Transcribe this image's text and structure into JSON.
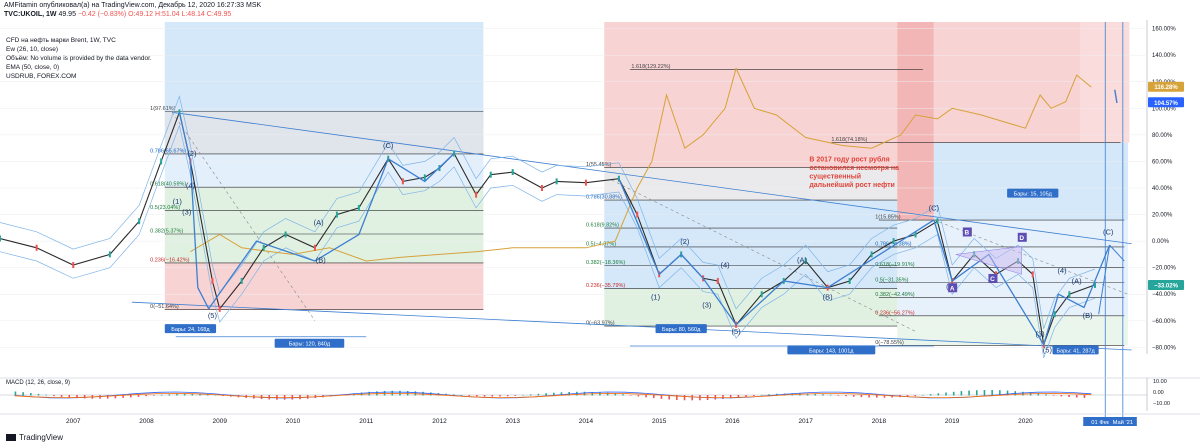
{
  "header": {
    "publisher_line": "AMFitamin опубликовал(а) на TradingView.com, Декабрь 12, 2020 16:27:33 MSK",
    "symbol": "TVC:UKOIL, 1W",
    "last": "49.95",
    "change": "−0.42 (−0.83%)",
    "ohlc": "O:49.12  H:51.04  L:48.14  C:49.95"
  },
  "legend": {
    "title": "CFD на нефть марки Brent, 1W, TVC",
    "ew": "Ew (26, 10, close)",
    "volume": "Объём: No volume is provided by the data vendor.",
    "ema": "EMA (50, close, 0)",
    "usdrub": "USDRUB, FOREX.COM"
  },
  "colors": {
    "red_zone": "#f6c4c4",
    "blue_zone": "#c7e0f7",
    "grey_zone": "#e3e3e6",
    "green_zone": "#d5ecd8",
    "fib_line": "#2b2b2b",
    "price_line": "#2b2b2b",
    "usdrub_line": "#d6a23a",
    "wave_line": "#3d7fd1",
    "annotation_red": "#e0443a",
    "label_blue": "#2f6fc9",
    "right_axis_blue": "#2962ff"
  },
  "chart_data": {
    "type": "line",
    "title": "CFD на нефть марки Brent, 1W, TVC",
    "y_axis_unit": "% change",
    "ylim": [
      -85,
      165
    ],
    "y_ticks": [
      "160.00%",
      "140.00%",
      "120.00%",
      "100.00%",
      "80.00%",
      "60.00%",
      "40.00%",
      "20.00%",
      "0.00%",
      "−20.00%",
      "−40.00%",
      "−60.00%",
      "−80.00%"
    ],
    "x_ticks": [
      "2007",
      "2008",
      "2009",
      "2010",
      "2011",
      "2012",
      "2013",
      "2014",
      "2015",
      "2016",
      "2017",
      "2018",
      "2019",
      "2020"
    ],
    "x_extra_labels": [
      "01 Фев '21",
      "Май '21"
    ],
    "right_badges": [
      {
        "label": "116.28%",
        "value": 116.28,
        "color": "#d6a23a"
      },
      {
        "label": "104.57%",
        "value": 104.57,
        "color": "#2962ff"
      },
      {
        "label": "−33.02%",
        "value": -33.02,
        "color": "#26a69a"
      }
    ],
    "series": [
      {
        "name": "UKOIL",
        "color": "#2b2b2b",
        "x": [
          2006.0,
          2006.5,
          2007.0,
          2007.5,
          2007.9,
          2008.2,
          2008.45,
          2008.6,
          2008.9,
          2009.0,
          2009.3,
          2009.6,
          2009.9,
          2010.3,
          2010.6,
          2010.9,
          2011.3,
          2011.5,
          2011.8,
          2012.0,
          2012.2,
          2012.5,
          2012.7,
          2013.0,
          2013.4,
          2013.6,
          2014.0,
          2014.45,
          2014.7,
          2015.0,
          2015.3,
          2015.6,
          2015.8,
          2016.05,
          2016.4,
          2016.7,
          2017.0,
          2017.3,
          2017.6,
          2017.9,
          2018.2,
          2018.5,
          2018.8,
          2019.0,
          2019.3,
          2019.6,
          2019.9,
          2020.1,
          2020.25,
          2020.4,
          2020.6,
          2020.95
        ],
        "values": [
          2,
          -5,
          -18,
          -10,
          15,
          60,
          97,
          60,
          -30,
          -51,
          -30,
          -5,
          5,
          -5,
          20,
          25,
          62,
          45,
          48,
          55,
          66,
          35,
          50,
          52,
          40,
          45,
          44,
          47,
          20,
          -25,
          -10,
          -28,
          -30,
          -63,
          -40,
          -30,
          -15,
          -35,
          -30,
          -10,
          0,
          5,
          15,
          -30,
          -10,
          -25,
          -15,
          -25,
          -78,
          -55,
          -40,
          -33
        ]
      },
      {
        "name": "USDRUB",
        "color": "#d6a23a",
        "x": [
          2008.6,
          2009.0,
          2009.3,
          2009.7,
          2010.0,
          2010.5,
          2011.0,
          2011.5,
          2012.0,
          2012.5,
          2013.0,
          2013.5,
          2014.0,
          2014.4,
          2014.7,
          2014.9,
          2015.1,
          2015.35,
          2015.6,
          2015.9,
          2016.05,
          2016.3,
          2016.6,
          2017.0,
          2017.5,
          2017.9,
          2018.1,
          2018.3,
          2018.5,
          2018.8,
          2019.0,
          2019.4,
          2019.7,
          2020.0,
          2020.2,
          2020.35,
          2020.55,
          2020.7,
          2020.9
        ],
        "values": [
          -8,
          5,
          -5,
          -8,
          -10,
          -5,
          -15,
          -12,
          -10,
          -8,
          -5,
          -5,
          -5,
          0,
          40,
          60,
          110,
          70,
          80,
          100,
          130,
          100,
          95,
          78,
          72,
          70,
          75,
          80,
          95,
          92,
          100,
          95,
          90,
          85,
          110,
          100,
          105,
          125,
          116
        ]
      }
    ],
    "fib_levels": [
      {
        "label": "1(97.61%)",
        "value": 97.61
      },
      {
        "label": "0.786(65.67%)",
        "value": 65.67
      },
      {
        "label": "0.618(40.59%)",
        "value": 40.59
      },
      {
        "label": "0.5(23.04%)",
        "value": 23.04
      },
      {
        "label": "0.382(5.37%)",
        "value": 5.37
      },
      {
        "label": "0.236(−16.42%)",
        "value": -16.42
      },
      {
        "label": "0(−51.64%)",
        "value": -51.64
      },
      {
        "label": "1(55.45%)",
        "value": 55.45
      },
      {
        "label": "0.786(30.88%)",
        "value": 30.88
      },
      {
        "label": "0.618(9.82%)",
        "value": 9.82
      },
      {
        "label": "0.5(−4.37%)",
        "value": -4.37
      },
      {
        "label": "0.382(−18.36%)",
        "value": -18.36
      },
      {
        "label": "0.236(−35.79%)",
        "value": -35.79
      },
      {
        "label": "0(−63.97%)",
        "value": -63.97
      },
      {
        "label": "1.618(129.22%)",
        "value": 129.22
      },
      {
        "label": "1.618(74.18%)",
        "value": 74.18
      },
      {
        "label": "1(15.85%)",
        "value": 15.85
      },
      {
        "label": "0.786(−4.38%)",
        "value": -4.38
      },
      {
        "label": "0.618(−19.91%)",
        "value": -19.91
      },
      {
        "label": "0.5(−31.35%)",
        "value": -31.35
      },
      {
        "label": "0.382(−42.49%)",
        "value": -42.49
      },
      {
        "label": "0.236(−56.27%)",
        "value": -56.27
      },
      {
        "label": "0(−78.55%)",
        "value": -78.55
      }
    ],
    "wave_labels": [
      "(1)",
      "(2)",
      "(3)",
      "(4)",
      "(5)",
      "(A)",
      "(B)",
      "(C)",
      "(1)",
      "(2)",
      "(3)",
      "(4)",
      "(5)",
      "(A)",
      "(B)",
      "(C)",
      "(1)",
      "(3)",
      "(4)",
      "(5)",
      "(A)",
      "(B)",
      "(C)",
      "A",
      "B",
      "C",
      "D"
    ],
    "bar_labels": [
      "Бары: 24, 168д",
      "Бары: 120, 840д",
      "Бары: 80, 560д",
      "Бары: 143, 1001д",
      "Бары: 15, 105д",
      "Бары: 41, 287д"
    ],
    "annotation": "В 2017 году рост рубля остановился несмотря на существенный дальнейший рост нефти",
    "macd": {
      "label": "MACD (12, 26, close, 9)",
      "y_ticks": [
        "10.00",
        "0.00",
        "−10.00"
      ]
    }
  },
  "footer": {
    "brand": "TradingView"
  }
}
